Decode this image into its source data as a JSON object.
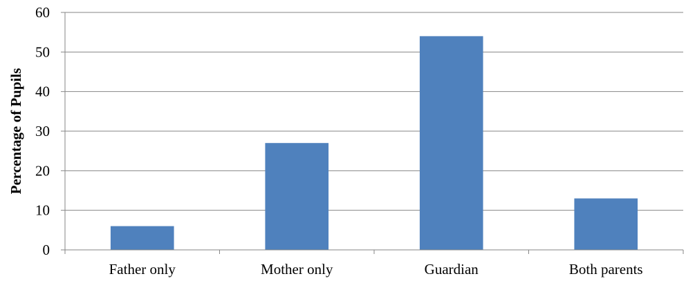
{
  "chart_data": {
    "type": "bar",
    "categories": [
      "Father only",
      "Mother only",
      "Guardian",
      "Both parents"
    ],
    "values": [
      6,
      27,
      54,
      13
    ],
    "title": "",
    "xlabel": "",
    "ylabel": "Percentage of Pupils",
    "ylim": [
      0,
      60
    ],
    "yticks": [
      0,
      10,
      20,
      30,
      40,
      50,
      60
    ],
    "grid": true,
    "legend": "none",
    "colors": {
      "bar": "#4F81BD",
      "grid": "#868686",
      "axis": "#868686"
    }
  }
}
